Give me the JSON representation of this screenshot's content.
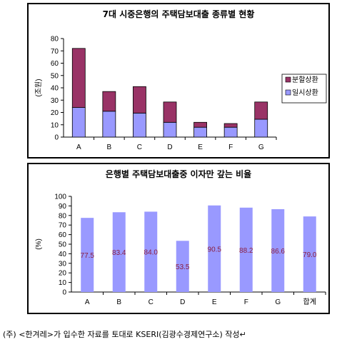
{
  "chart_data": [
    {
      "type": "bar",
      "stacked": true,
      "title": "7대 시중은행의 주택담보대출 종류별 현황",
      "ylabel": "(조원)",
      "xlabel": "",
      "categories": [
        "A",
        "B",
        "C",
        "D",
        "E",
        "F",
        "G"
      ],
      "series": [
        {
          "name": "일시상환",
          "values": [
            24,
            21,
            19.5,
            12,
            8,
            8,
            14.5
          ],
          "color": "#9999ff"
        },
        {
          "name": "분할상환",
          "values": [
            48,
            16,
            21.5,
            16.5,
            4,
            3,
            14
          ],
          "color": "#993366"
        }
      ],
      "ylim": [
        0,
        80
      ],
      "yticks": [
        "0",
        "10",
        "20",
        "30",
        "40",
        "50",
        "60",
        "70",
        "80"
      ],
      "legend": "right",
      "grid": false
    },
    {
      "type": "bar",
      "title": "은행별 주택담보대출중 이자만 갚는 비율",
      "ylabel": "(%)",
      "xlabel": "",
      "categories": [
        "A",
        "B",
        "C",
        "D",
        "E",
        "F",
        "G",
        "합계"
      ],
      "values": [
        77.5,
        83.4,
        84.0,
        53.5,
        90.5,
        88.2,
        86.6,
        79.0
      ],
      "value_labels": [
        "77.5",
        "83.4",
        "84.0",
        "53.5",
        "90.5",
        "88.2",
        "86.6",
        "79.0"
      ],
      "color": "#9999ff",
      "ylim": [
        0,
        100
      ],
      "yticks": [
        "0",
        "10",
        "20",
        "30",
        "40",
        "50",
        "60",
        "70",
        "80",
        "90",
        "100"
      ],
      "grid": false
    }
  ],
  "footnote": "(주) <한겨레>가 입수한 자료를 토대로 KSERI(김광수경제연구소) 작성↵"
}
